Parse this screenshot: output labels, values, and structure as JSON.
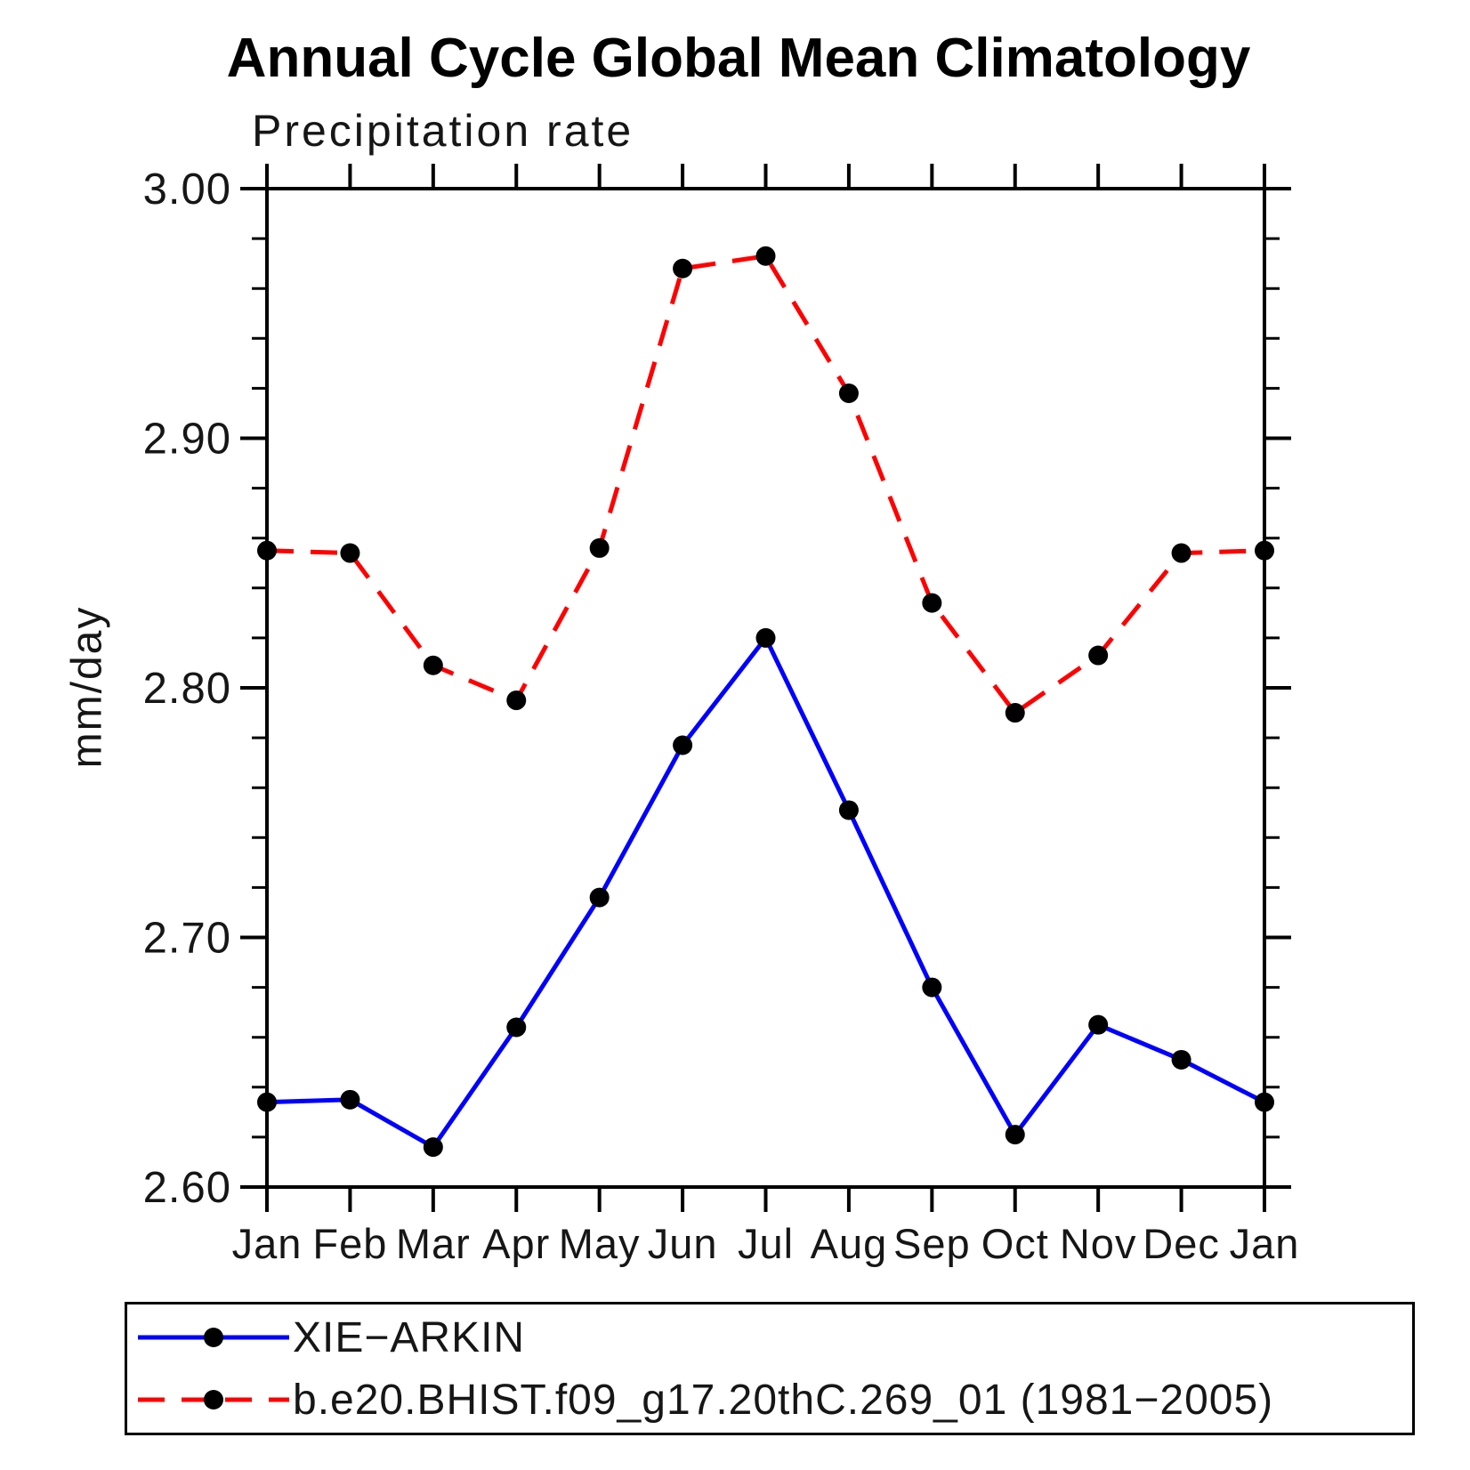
{
  "page": {
    "background": "#ffffff",
    "text_color": "#000000"
  },
  "chart_data": {
    "type": "line",
    "title": "Annual Cycle Global Mean Climatology",
    "subtitle": "Precipitation rate",
    "ylabel": "mm/day",
    "xlabel": "",
    "ylim": [
      2.6,
      3.0
    ],
    "ytick_step": 0.1,
    "ytick_minor_step": 0.02,
    "ytick_labels": [
      "2.60",
      "2.70",
      "2.80",
      "2.90",
      "3.00"
    ],
    "grid": false,
    "legend_position": "bottom-left",
    "categories": [
      "Jan",
      "Feb",
      "Mar",
      "Apr",
      "May",
      "Jun",
      "Jul",
      "Aug",
      "Sep",
      "Oct",
      "Nov",
      "Dec",
      "Jan"
    ],
    "series": [
      {
        "name": "XIE−ARKIN",
        "color": "#0000ff",
        "line_style": "solid",
        "marker": "filled-circle",
        "marker_color": "#000000",
        "values": [
          2.634,
          2.635,
          2.616,
          2.664,
          2.716,
          2.777,
          2.82,
          2.751,
          2.68,
          2.621,
          2.665,
          2.651,
          2.634
        ]
      },
      {
        "name": "b.e20.BHIST.f09_g17.20thC.269_01 (1981−2005)",
        "color": "#ff0000",
        "line_style": "dashed",
        "marker": "filled-circle",
        "marker_color": "#000000",
        "values": [
          2.855,
          2.854,
          2.809,
          2.795,
          2.856,
          2.968,
          2.973,
          2.918,
          2.834,
          2.79,
          2.813,
          2.854,
          2.855
        ]
      }
    ]
  }
}
